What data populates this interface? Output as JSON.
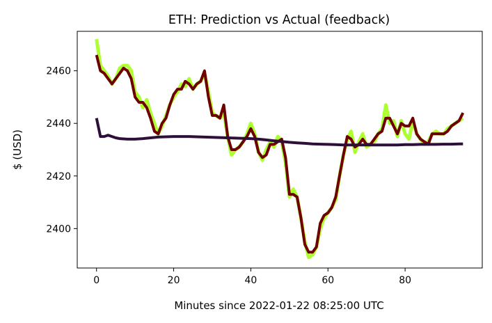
{
  "chart_data": {
    "type": "line",
    "title": "ETH: Prediction vs Actual (feedback)",
    "xlabel": "Minutes since 2022-01-22 08:25:00 UTC",
    "ylabel": "$ (USD)",
    "xlim": [
      -5,
      100
    ],
    "ylim": [
      2385,
      2475
    ],
    "x_ticks": [
      0,
      20,
      40,
      60,
      80
    ],
    "y_ticks": [
      2400,
      2420,
      2440,
      2460
    ],
    "grid": false,
    "legend": "none",
    "series": [
      {
        "color": "#adff2f",
        "width": 5,
        "points": [
          [
            0,
            2472
          ],
          [
            1,
            2462
          ],
          [
            2,
            2460
          ],
          [
            3,
            2458
          ],
          [
            4,
            2455
          ],
          [
            5,
            2457
          ],
          [
            6,
            2461
          ],
          [
            7,
            2462
          ],
          [
            8,
            2462
          ],
          [
            9,
            2460
          ],
          [
            10,
            2452
          ],
          [
            11,
            2450
          ],
          [
            12,
            2446
          ],
          [
            13,
            2449
          ],
          [
            14,
            2444
          ],
          [
            15,
            2440
          ],
          [
            16,
            2436
          ],
          [
            17,
            2439
          ],
          [
            18,
            2443
          ],
          [
            19,
            2447
          ],
          [
            20,
            2450
          ],
          [
            21,
            2452
          ],
          [
            22,
            2455
          ],
          [
            23,
            2454
          ],
          [
            24,
            2457
          ],
          [
            25,
            2453
          ],
          [
            26,
            2455
          ],
          [
            27,
            2456
          ],
          [
            28,
            2459
          ],
          [
            29,
            2452
          ],
          [
            30,
            2444
          ],
          [
            31,
            2443
          ],
          [
            32,
            2442
          ],
          [
            33,
            2444
          ],
          [
            34,
            2435
          ],
          [
            35,
            2428
          ],
          [
            36,
            2430
          ],
          [
            37,
            2431
          ],
          [
            38,
            2433
          ],
          [
            39,
            2436
          ],
          [
            40,
            2440
          ],
          [
            41,
            2436
          ],
          [
            42,
            2429
          ],
          [
            43,
            2426
          ],
          [
            44,
            2430
          ],
          [
            45,
            2433
          ],
          [
            46,
            2431
          ],
          [
            47,
            2435
          ],
          [
            48,
            2433
          ],
          [
            49,
            2425
          ],
          [
            50,
            2412
          ],
          [
            51,
            2415
          ],
          [
            52,
            2412
          ],
          [
            53,
            2404
          ],
          [
            54,
            2395
          ],
          [
            55,
            2389
          ],
          [
            56,
            2390
          ],
          [
            57,
            2393
          ],
          [
            58,
            2400
          ],
          [
            59,
            2404
          ],
          [
            60,
            2406
          ],
          [
            61,
            2408
          ],
          [
            62,
            2411
          ],
          [
            63,
            2420
          ],
          [
            64,
            2428
          ],
          [
            65,
            2434
          ],
          [
            66,
            2437
          ],
          [
            67,
            2429
          ],
          [
            68,
            2433
          ],
          [
            69,
            2436
          ],
          [
            70,
            2431
          ],
          [
            71,
            2432
          ],
          [
            72,
            2433
          ],
          [
            73,
            2436
          ],
          [
            74,
            2438
          ],
          [
            75,
            2447
          ],
          [
            76,
            2440
          ],
          [
            77,
            2441
          ],
          [
            78,
            2435
          ],
          [
            79,
            2441
          ],
          [
            80,
            2436
          ],
          [
            81,
            2434
          ],
          [
            82,
            2441
          ],
          [
            83,
            2436
          ],
          [
            84,
            2434
          ],
          [
            85,
            2432
          ],
          [
            86,
            2433
          ],
          [
            87,
            2436
          ],
          [
            88,
            2437
          ],
          [
            89,
            2436
          ],
          [
            90,
            2436
          ],
          [
            91,
            2438
          ],
          [
            92,
            2439
          ],
          [
            93,
            2440
          ],
          [
            94,
            2441
          ],
          [
            95,
            2442
          ]
        ]
      },
      {
        "color": "#6e0000",
        "width": 4,
        "points": [
          [
            0,
            2466
          ],
          [
            1,
            2460
          ],
          [
            2,
            2459
          ],
          [
            3,
            2457
          ],
          [
            4,
            2455
          ],
          [
            5,
            2457
          ],
          [
            6,
            2459
          ],
          [
            7,
            2461
          ],
          [
            8,
            2460
          ],
          [
            9,
            2457
          ],
          [
            10,
            2450
          ],
          [
            11,
            2448
          ],
          [
            12,
            2448
          ],
          [
            13,
            2446
          ],
          [
            14,
            2442
          ],
          [
            15,
            2437
          ],
          [
            16,
            2436
          ],
          [
            17,
            2440
          ],
          [
            18,
            2442
          ],
          [
            19,
            2447
          ],
          [
            20,
            2451
          ],
          [
            21,
            2453
          ],
          [
            22,
            2453
          ],
          [
            23,
            2456
          ],
          [
            24,
            2455
          ],
          [
            25,
            2453
          ],
          [
            26,
            2455
          ],
          [
            27,
            2456
          ],
          [
            28,
            2460
          ],
          [
            29,
            2450
          ],
          [
            30,
            2443
          ],
          [
            31,
            2443
          ],
          [
            32,
            2442
          ],
          [
            33,
            2447
          ],
          [
            34,
            2435
          ],
          [
            35,
            2430
          ],
          [
            36,
            2430
          ],
          [
            37,
            2431
          ],
          [
            38,
            2433
          ],
          [
            39,
            2435
          ],
          [
            40,
            2438
          ],
          [
            41,
            2435
          ],
          [
            42,
            2429
          ],
          [
            43,
            2427
          ],
          [
            44,
            2428
          ],
          [
            45,
            2432
          ],
          [
            46,
            2432
          ],
          [
            47,
            2433
          ],
          [
            48,
            2434
          ],
          [
            49,
            2427
          ],
          [
            50,
            2413
          ],
          [
            51,
            2413
          ],
          [
            52,
            2412
          ],
          [
            53,
            2404
          ],
          [
            54,
            2394
          ],
          [
            55,
            2391
          ],
          [
            56,
            2391
          ],
          [
            57,
            2393
          ],
          [
            58,
            2402
          ],
          [
            59,
            2405
          ],
          [
            60,
            2406
          ],
          [
            61,
            2408
          ],
          [
            62,
            2412
          ],
          [
            63,
            2420
          ],
          [
            64,
            2428
          ],
          [
            65,
            2435
          ],
          [
            66,
            2434
          ],
          [
            67,
            2431
          ],
          [
            68,
            2432
          ],
          [
            69,
            2434
          ],
          [
            70,
            2432
          ],
          [
            71,
            2432
          ],
          [
            72,
            2434
          ],
          [
            73,
            2436
          ],
          [
            74,
            2437
          ],
          [
            75,
            2442
          ],
          [
            76,
            2442
          ],
          [
            77,
            2439
          ],
          [
            78,
            2436
          ],
          [
            79,
            2440
          ],
          [
            80,
            2439
          ],
          [
            81,
            2439
          ],
          [
            82,
            2442
          ],
          [
            83,
            2436
          ],
          [
            84,
            2434
          ],
          [
            85,
            2433
          ],
          [
            86,
            2432
          ],
          [
            87,
            2436
          ],
          [
            88,
            2436
          ],
          [
            89,
            2436
          ],
          [
            90,
            2436
          ],
          [
            91,
            2437
          ],
          [
            92,
            2439
          ],
          [
            93,
            2440
          ],
          [
            94,
            2441
          ],
          [
            95,
            2444
          ]
        ]
      },
      {
        "color": "#2d0f3a",
        "width": 4,
        "points": [
          [
            0,
            2442
          ],
          [
            1,
            2435
          ],
          [
            2,
            2435
          ],
          [
            3,
            2435.5
          ],
          [
            4,
            2435
          ],
          [
            5,
            2434.5
          ],
          [
            6,
            2434.2
          ],
          [
            8,
            2434
          ],
          [
            10,
            2434
          ],
          [
            12,
            2434.2
          ],
          [
            14,
            2434.5
          ],
          [
            16,
            2434.8
          ],
          [
            18,
            2434.9
          ],
          [
            20,
            2435
          ],
          [
            22,
            2435
          ],
          [
            24,
            2435
          ],
          [
            26,
            2434.9
          ],
          [
            28,
            2434.8
          ],
          [
            30,
            2434.7
          ],
          [
            32,
            2434.6
          ],
          [
            34,
            2434.5
          ],
          [
            36,
            2434.4
          ],
          [
            38,
            2434.3
          ],
          [
            40,
            2434.2
          ],
          [
            42,
            2434
          ],
          [
            44,
            2433.7
          ],
          [
            46,
            2433.4
          ],
          [
            48,
            2433.1
          ],
          [
            50,
            2432.8
          ],
          [
            52,
            2432.6
          ],
          [
            54,
            2432.4
          ],
          [
            56,
            2432.2
          ],
          [
            58,
            2432.1
          ],
          [
            60,
            2432
          ],
          [
            62,
            2431.9
          ],
          [
            64,
            2431.8
          ],
          [
            66,
            2431.8
          ],
          [
            68,
            2431.8
          ],
          [
            70,
            2431.8
          ],
          [
            72,
            2431.8
          ],
          [
            74,
            2431.8
          ],
          [
            76,
            2431.8
          ],
          [
            78,
            2431.8
          ],
          [
            80,
            2431.9
          ],
          [
            82,
            2431.9
          ],
          [
            84,
            2432
          ],
          [
            86,
            2432
          ],
          [
            88,
            2432
          ],
          [
            90,
            2432.1
          ],
          [
            92,
            2432.1
          ],
          [
            94,
            2432.2
          ],
          [
            95,
            2432.2
          ]
        ]
      }
    ]
  }
}
